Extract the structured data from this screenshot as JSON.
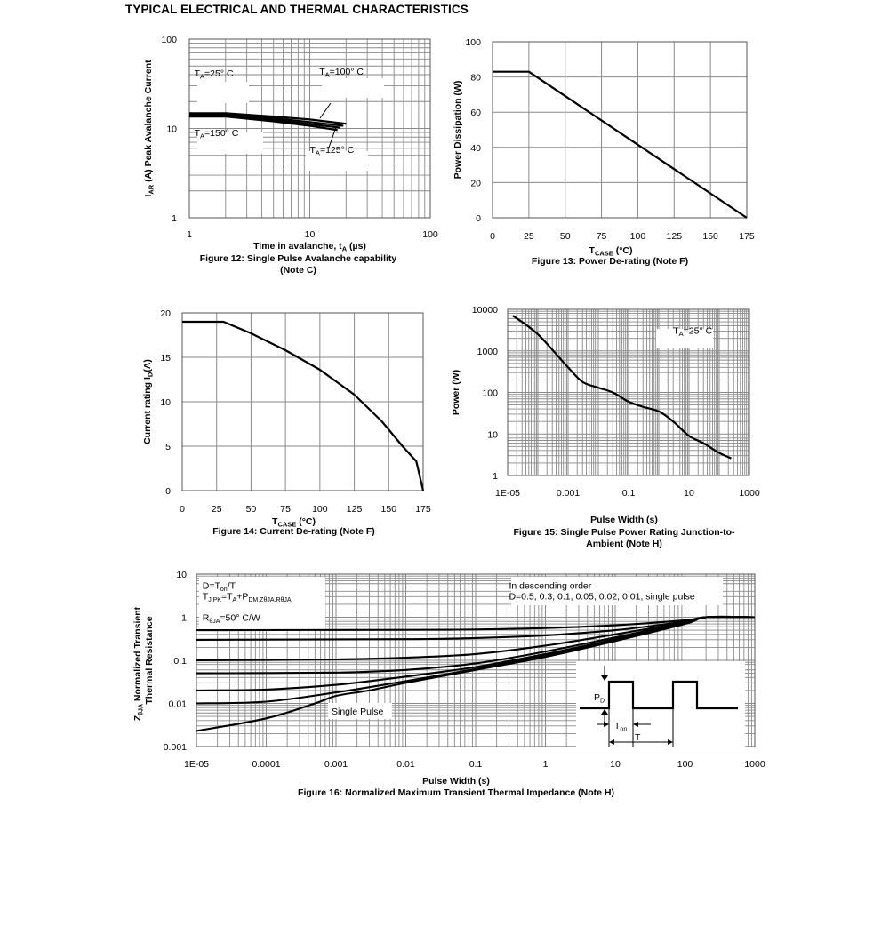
{
  "page": {
    "title": "TYPICAL ELECTRICAL AND THERMAL CHARACTERISTICS"
  },
  "chart_data": [
    {
      "id": "fig12",
      "type": "line",
      "caption": [
        "Figure 12: Single Pulse Avalanche capability",
        "(Note C)"
      ],
      "xlabel": "Time in avalanche, t_A (µs)",
      "ylabel": "I_AR (A) Peak Avalanche Current",
      "xscale": "log",
      "yscale": "log",
      "xlim": [
        1,
        100
      ],
      "ylim": [
        1,
        100
      ],
      "xticks": [
        1,
        10,
        100
      ],
      "xtick_labels": [
        "1",
        "10",
        "100"
      ],
      "yticks": [
        1,
        10,
        100
      ],
      "ytick_labels": [
        "1",
        "10",
        "100"
      ],
      "grid": true,
      "series": [
        {
          "x": [
            1,
            2,
            5,
            10,
            20
          ],
          "y": [
            14.8,
            14.8,
            13.6,
            12.6,
            11.3
          ]
        },
        {
          "x": [
            1,
            2,
            5,
            10,
            19
          ],
          "y": [
            14.4,
            14.4,
            13.0,
            11.8,
            10.7
          ]
        },
        {
          "x": [
            1,
            2,
            5,
            10,
            18
          ],
          "y": [
            14.0,
            14.0,
            12.5,
            11.2,
            10.2
          ]
        },
        {
          "x": [
            1,
            2,
            5,
            10,
            17
          ],
          "y": [
            13.6,
            13.6,
            12.0,
            10.7,
            9.6
          ]
        }
      ],
      "annotations": [
        {
          "main": "T",
          "sub": "A",
          "rest": "=25° C",
          "x": 1.1,
          "y": 38
        },
        {
          "main": "T",
          "sub": "A",
          "rest": "=100° C",
          "x": 12,
          "y": 40
        },
        {
          "main": "T",
          "sub": "A",
          "rest": "=150° C",
          "x": 1.1,
          "y": 8.2
        },
        {
          "main": "T",
          "sub": "A",
          "rest": "=125° C",
          "x": 10,
          "y": 5.3
        }
      ]
    },
    {
      "id": "fig13",
      "type": "line",
      "caption": [
        "Figure 13: Power De-rating (Note F)"
      ],
      "xlabel": "T_CASE (°C)",
      "ylabel": "Power Dissipation (W)",
      "xlim": [
        0,
        175
      ],
      "ylim": [
        0,
        100
      ],
      "xticks": [
        0,
        25,
        50,
        75,
        100,
        125,
        150,
        175
      ],
      "yticks": [
        0,
        20,
        40,
        60,
        80,
        100
      ],
      "grid": true,
      "series": [
        {
          "x": [
            0,
            25,
            175
          ],
          "y": [
            83,
            83,
            0
          ]
        }
      ]
    },
    {
      "id": "fig14",
      "type": "line",
      "caption": [
        "Figure 14: Current De-rating (Note F)"
      ],
      "xlabel": "T_CASE (°C)",
      "ylabel": "Current rating I_D(A)",
      "xlim": [
        0,
        175
      ],
      "ylim": [
        0,
        20
      ],
      "xticks": [
        0,
        25,
        50,
        75,
        100,
        125,
        150,
        175
      ],
      "yticks": [
        0,
        5,
        10,
        15,
        20
      ],
      "grid": true,
      "series": [
        {
          "x": [
            0,
            30,
            50,
            75,
            100,
            125,
            145,
            160,
            170,
            175
          ],
          "y": [
            19,
            19,
            17.7,
            15.8,
            13.6,
            10.8,
            7.8,
            5.0,
            3.3,
            0
          ]
        }
      ]
    },
    {
      "id": "fig15",
      "type": "line",
      "caption": [
        "Figure 15: Single Pulse Power Rating Junction-to-",
        "Ambient (Note H)"
      ],
      "xlabel": "Pulse Width (s)",
      "ylabel": "Power (W)",
      "xscale": "log",
      "yscale": "log",
      "xlim": [
        1e-05,
        1000
      ],
      "ylim": [
        1,
        10000
      ],
      "xticks": [
        1e-05,
        0.001,
        0.1,
        10,
        1000
      ],
      "xtick_labels": [
        "1E-05",
        "0.001",
        "0.1",
        "10",
        "1000"
      ],
      "yticks": [
        1,
        10,
        100,
        1000,
        10000
      ],
      "ytick_labels": [
        "1",
        "10",
        "100",
        "1000",
        "10000"
      ],
      "grid": true,
      "series": [
        {
          "x": [
            1.5e-05,
            0.0001,
            0.001,
            0.003,
            0.01,
            0.03,
            0.1,
            0.3,
            1,
            3,
            10,
            30,
            100,
            250
          ],
          "y": [
            7000,
            2500,
            400,
            180,
            130,
            100,
            60,
            45,
            35,
            20,
            9,
            6,
            3.5,
            2.6
          ]
        }
      ],
      "annotations": [
        {
          "main": "T",
          "sub": "A",
          "rest": "=25° C",
          "x": 3,
          "y": 2600
        }
      ]
    },
    {
      "id": "fig16",
      "type": "line",
      "caption": [
        "Figure 16: Normalized Maximum Transient Thermal Impedance (Note H)"
      ],
      "xlabel": "Pulse Width (s)",
      "ylabel": [
        "Z_θJA Normalized Transient",
        "Thermal Resistance"
      ],
      "xscale": "log",
      "yscale": "log",
      "xlim": [
        1e-05,
        1000
      ],
      "ylim": [
        0.001,
        10
      ],
      "xticks": [
        1e-05,
        0.0001,
        0.001,
        0.01,
        0.1,
        1,
        10,
        100,
        1000
      ],
      "xtick_labels": [
        "1E-05",
        "0.0001",
        "0.001",
        "0.01",
        "0.1",
        "1",
        "10",
        "100",
        "1000"
      ],
      "yticks": [
        0.001,
        0.01,
        0.1,
        1,
        10
      ],
      "ytick_labels": [
        "0.001",
        "0.01",
        "0.1",
        "1",
        "10"
      ],
      "grid": true,
      "series": [
        {
          "x": [
            1e-05,
            0.01,
            0.1,
            1,
            10,
            100,
            200,
            1000
          ],
          "y": [
            0.5,
            0.51,
            0.52,
            0.56,
            0.65,
            0.85,
            1.0,
            1.0
          ]
        },
        {
          "x": [
            1e-05,
            0.01,
            0.1,
            1,
            10,
            100,
            200,
            1000
          ],
          "y": [
            0.3,
            0.31,
            0.33,
            0.38,
            0.5,
            0.8,
            1.0,
            1.0
          ]
        },
        {
          "x": [
            1e-05,
            0.001,
            0.01,
            0.1,
            1,
            10,
            100,
            200,
            1000
          ],
          "y": [
            0.1,
            0.105,
            0.115,
            0.14,
            0.22,
            0.4,
            0.78,
            1.0,
            1.0
          ]
        },
        {
          "x": [
            1e-05,
            0.001,
            0.01,
            0.1,
            1,
            10,
            100,
            200,
            1000
          ],
          "y": [
            0.05,
            0.052,
            0.06,
            0.085,
            0.16,
            0.34,
            0.75,
            1.0,
            1.0
          ]
        },
        {
          "x": [
            1e-05,
            0.0001,
            0.001,
            0.01,
            0.1,
            1,
            10,
            100,
            200,
            1000
          ],
          "y": [
            0.02,
            0.021,
            0.027,
            0.042,
            0.07,
            0.14,
            0.31,
            0.72,
            1.0,
            1.0
          ]
        },
        {
          "x": [
            1e-05,
            0.0001,
            0.001,
            0.01,
            0.1,
            1,
            10,
            100,
            200,
            1000
          ],
          "y": [
            0.01,
            0.011,
            0.018,
            0.033,
            0.063,
            0.13,
            0.3,
            0.7,
            1.0,
            1.0
          ]
        },
        {
          "x": [
            1e-05,
            0.0001,
            0.0005,
            0.001,
            0.003,
            0.01,
            0.1,
            1,
            10,
            100,
            200,
            1000
          ],
          "y": [
            0.0023,
            0.0045,
            0.01,
            0.015,
            0.02,
            0.03,
            0.06,
            0.12,
            0.28,
            0.7,
            1.0,
            1.0
          ],
          "name": "Single Pulse"
        }
      ],
      "annotations": [
        {
          "text": "D=T_on/T",
          "x": 1.22e-05,
          "y": 5.5
        },
        {
          "text": "T_J,PK=T_A+P_DM.Z_θJA.R_θJA",
          "x": 1.22e-05,
          "y": 3.1
        },
        {
          "text": "R_θJA=50° C/W",
          "x": 1.22e-05,
          "y": 1.0
        },
        {
          "text": "In descending order",
          "x": 0.3,
          "y": 5.5
        },
        {
          "text": "D=0.5, 0.3, 0.1, 0.05, 0.02, 0.01, single pulse",
          "x": 0.3,
          "y": 3.1
        }
      ],
      "inset_labels": {
        "power": "P_D",
        "on_time": "T_on",
        "period": "T"
      }
    }
  ]
}
